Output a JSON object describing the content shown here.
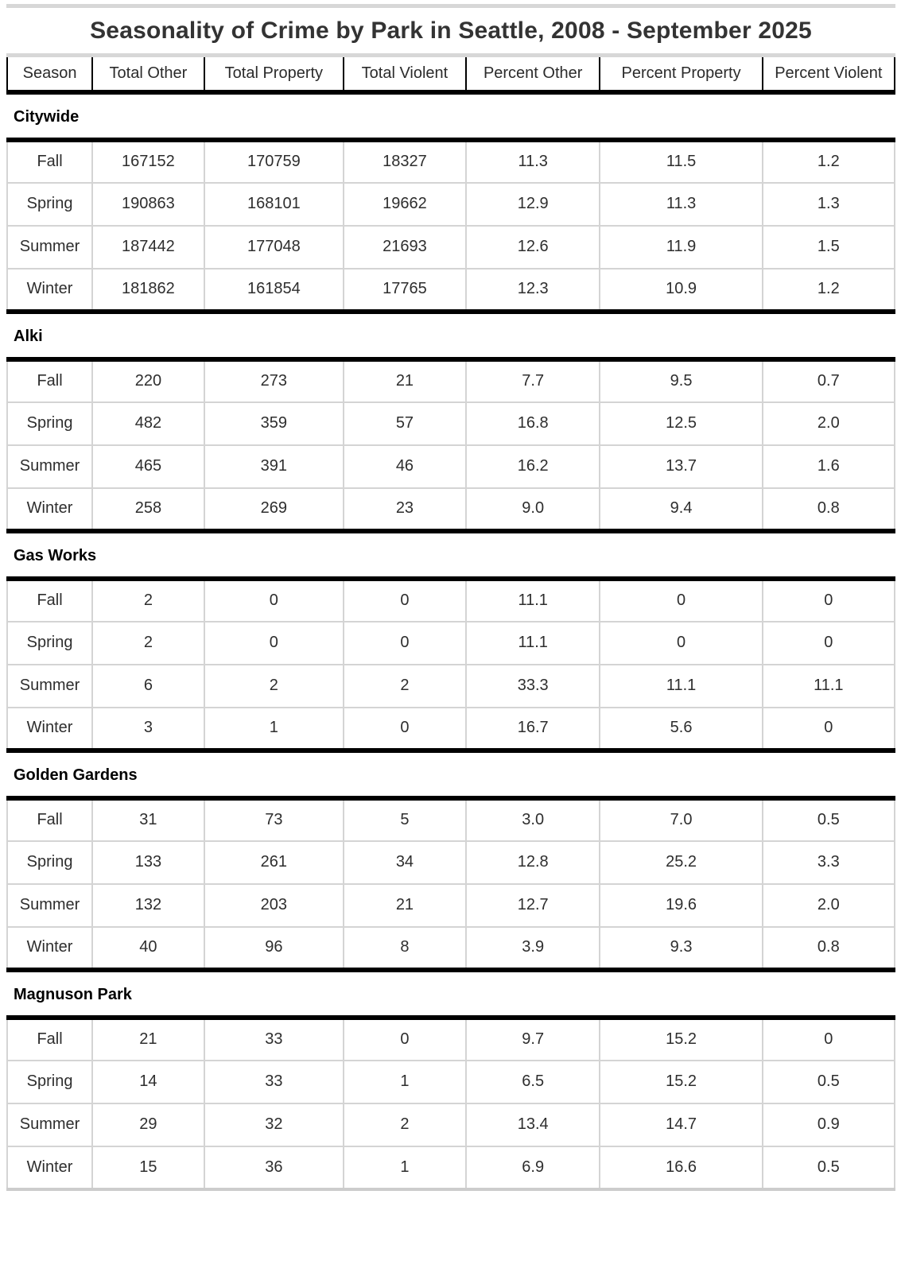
{
  "chart_data": {
    "type": "table",
    "title": "Seasonality of Crime by Park in Seattle, 2008 - September 2025",
    "columns": [
      "Season",
      "Total Other",
      "Total Property",
      "Total Violent",
      "Percent Other",
      "Percent Property",
      "Percent Violent"
    ],
    "sections": [
      {
        "name": "Citywide",
        "rows": [
          [
            "Fall",
            "167152",
            "170759",
            "18327",
            "11.3",
            "11.5",
            "1.2"
          ],
          [
            "Spring",
            "190863",
            "168101",
            "19662",
            "12.9",
            "11.3",
            "1.3"
          ],
          [
            "Summer",
            "187442",
            "177048",
            "21693",
            "12.6",
            "11.9",
            "1.5"
          ],
          [
            "Winter",
            "181862",
            "161854",
            "17765",
            "12.3",
            "10.9",
            "1.2"
          ]
        ]
      },
      {
        "name": "Alki",
        "rows": [
          [
            "Fall",
            "220",
            "273",
            "21",
            "7.7",
            "9.5",
            "0.7"
          ],
          [
            "Spring",
            "482",
            "359",
            "57",
            "16.8",
            "12.5",
            "2.0"
          ],
          [
            "Summer",
            "465",
            "391",
            "46",
            "16.2",
            "13.7",
            "1.6"
          ],
          [
            "Winter",
            "258",
            "269",
            "23",
            "9.0",
            "9.4",
            "0.8"
          ]
        ]
      },
      {
        "name": "Gas Works",
        "rows": [
          [
            "Fall",
            "2",
            "0",
            "0",
            "11.1",
            "0",
            "0"
          ],
          [
            "Spring",
            "2",
            "0",
            "0",
            "11.1",
            "0",
            "0"
          ],
          [
            "Summer",
            "6",
            "2",
            "2",
            "33.3",
            "11.1",
            "11.1"
          ],
          [
            "Winter",
            "3",
            "1",
            "0",
            "16.7",
            "5.6",
            "0"
          ]
        ]
      },
      {
        "name": "Golden Gardens",
        "rows": [
          [
            "Fall",
            "31",
            "73",
            "5",
            "3.0",
            "7.0",
            "0.5"
          ],
          [
            "Spring",
            "133",
            "261",
            "34",
            "12.8",
            "25.2",
            "3.3"
          ],
          [
            "Summer",
            "132",
            "203",
            "21",
            "12.7",
            "19.6",
            "2.0"
          ],
          [
            "Winter",
            "40",
            "96",
            "8",
            "3.9",
            "9.3",
            "0.8"
          ]
        ]
      },
      {
        "name": "Magnuson Park",
        "rows": [
          [
            "Fall",
            "21",
            "33",
            "0",
            "9.7",
            "15.2",
            "0"
          ],
          [
            "Spring",
            "14",
            "33",
            "1",
            "6.5",
            "15.2",
            "0.5"
          ],
          [
            "Summer",
            "29",
            "32",
            "2",
            "13.4",
            "14.7",
            "0.9"
          ],
          [
            "Winter",
            "15",
            "36",
            "1",
            "6.9",
            "16.6",
            "0.5"
          ]
        ]
      }
    ],
    "layout": {
      "grid": "on",
      "section_border_color": "#000000",
      "cell_border_color": "#d4d4d4",
      "accent_strip_color": "#d7d7d7",
      "text_color": "#2e2e2e"
    }
  }
}
